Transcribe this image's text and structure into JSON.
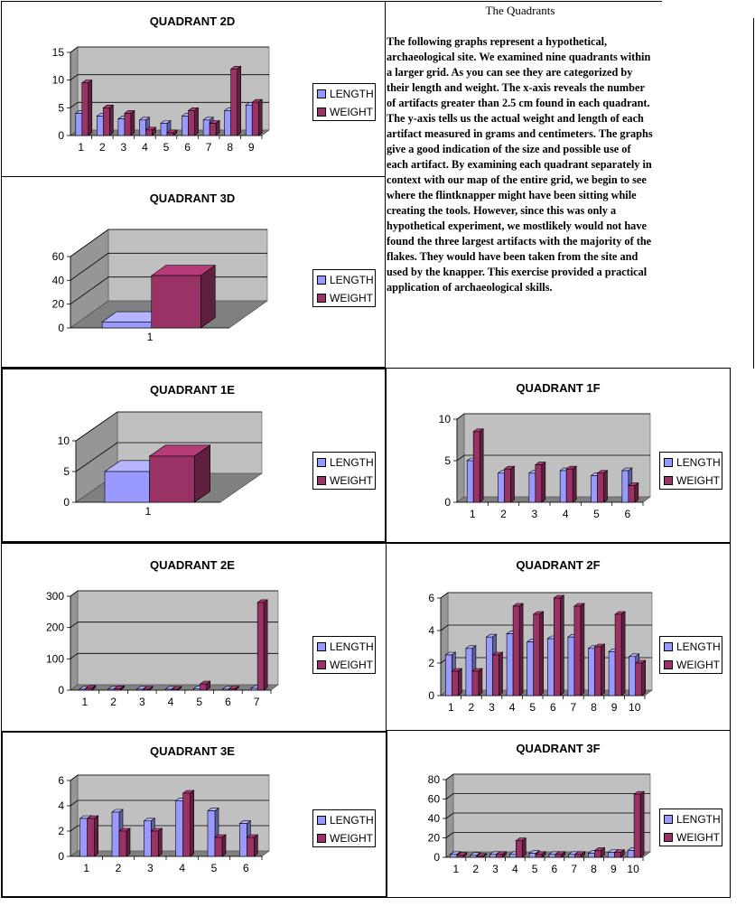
{
  "colors": {
    "length": "#9999ff",
    "weight": "#993366",
    "plot_bg": "#c0c0c0",
    "floor": "#808080"
  },
  "legend": {
    "length_label": "LENGTH",
    "weight_label": "WEIGHT"
  },
  "doc": {
    "title": "The Quadrants",
    "body": "The following  graphs represent a hypothetical, archaeological site.  We examined nine quadrants within a larger grid.  As you can see they are categorized by their length and weight.  The x-axis reveals the number of artifacts greater than 2.5 cm found in each quadrant.  The y-axis tells us the actual weight and length of each artifact measured in grams and centimeters.  The graphs give a good indication of the size and possible use of each artifact.  By examining each quadrant separately in context with our map of the entire grid, we begin to see where the flintknapper might have been sitting while creating the tools.  However, since this was only a hypothetical experiment, we mostlikely would not have found the three largest artifacts with the majority of the flakes.  They would have been taken from the site and used by the knapper.  This exercise provided a practical application of archaeological skills."
  },
  "chart_data": [
    {
      "id": "q2d",
      "type": "bar",
      "title": "QUADRANT 2D",
      "categories": [
        "1",
        "2",
        "3",
        "4",
        "5",
        "6",
        "7",
        "8",
        "9"
      ],
      "yticks": [
        "0",
        "5",
        "10",
        "15"
      ],
      "ylim": [
        0,
        15
      ],
      "legend": "right",
      "series": [
        {
          "name": "LENGTH",
          "values": [
            4,
            3.5,
            3,
            2.8,
            2.2,
            3.5,
            2.8,
            4.5,
            5.5
          ]
        },
        {
          "name": "WEIGHT",
          "values": [
            9.5,
            5,
            4,
            1,
            0.5,
            4.5,
            2.2,
            12,
            6
          ]
        }
      ]
    },
    {
      "id": "q3d",
      "type": "bar",
      "title": "QUADRANT 3D",
      "categories": [
        "1"
      ],
      "yticks": [
        "0",
        "20",
        "40",
        "60"
      ],
      "ylim": [
        0,
        60
      ],
      "legend": "right",
      "series": [
        {
          "name": "LENGTH",
          "values": [
            5
          ]
        },
        {
          "name": "WEIGHT",
          "values": [
            44
          ]
        }
      ]
    },
    {
      "id": "q1e",
      "type": "bar",
      "title": "QUADRANT 1E",
      "categories": [
        "1"
      ],
      "yticks": [
        "0",
        "5",
        "10"
      ],
      "ylim": [
        0,
        10
      ],
      "legend": "right",
      "series": [
        {
          "name": "LENGTH",
          "values": [
            5
          ]
        },
        {
          "name": "WEIGHT",
          "values": [
            7.5
          ]
        }
      ]
    },
    {
      "id": "q1f",
      "type": "bar",
      "title": "QUADRANT 1F",
      "categories": [
        "1",
        "2",
        "3",
        "4",
        "5",
        "6"
      ],
      "yticks": [
        "0",
        "5",
        "10"
      ],
      "ylim": [
        0,
        10
      ],
      "legend": "right",
      "series": [
        {
          "name": "LENGTH",
          "values": [
            5,
            3.5,
            3.5,
            3.8,
            3.2,
            3.8
          ]
        },
        {
          "name": "WEIGHT",
          "values": [
            8.5,
            4,
            4.5,
            4,
            3.5,
            2
          ]
        }
      ]
    },
    {
      "id": "q2e",
      "type": "bar",
      "title": "QUADRANT 2E",
      "categories": [
        "1",
        "2",
        "3",
        "4",
        "5",
        "6",
        "7"
      ],
      "yticks": [
        "0",
        "100",
        "200",
        "300"
      ],
      "ylim": [
        0,
        300
      ],
      "legend": "right",
      "series": [
        {
          "name": "LENGTH",
          "values": [
            3,
            3,
            3,
            3,
            5,
            3,
            6
          ]
        },
        {
          "name": "WEIGHT",
          "values": [
            6,
            5,
            3,
            3,
            20,
            4,
            280
          ]
        }
      ]
    },
    {
      "id": "q2f",
      "type": "bar",
      "title": "QUADRANT 2F",
      "categories": [
        "1",
        "2",
        "3",
        "4",
        "5",
        "6",
        "7",
        "8",
        "9",
        "10"
      ],
      "yticks": [
        "0",
        "2",
        "4",
        "6"
      ],
      "ylim": [
        0,
        6
      ],
      "legend": "right",
      "series": [
        {
          "name": "LENGTH",
          "values": [
            2.5,
            2.9,
            3.6,
            3.8,
            3.3,
            3.5,
            3.6,
            2.9,
            2.7,
            2.4
          ]
        },
        {
          "name": "WEIGHT",
          "values": [
            1.5,
            1.5,
            2.5,
            5.5,
            5,
            6,
            5.5,
            3,
            5,
            2
          ]
        }
      ]
    },
    {
      "id": "q3e",
      "type": "bar",
      "title": "QUADRANT 3E",
      "categories": [
        "1",
        "2",
        "3",
        "4",
        "5",
        "6"
      ],
      "yticks": [
        "0",
        "2",
        "4",
        "6"
      ],
      "ylim": [
        0,
        6
      ],
      "legend": "right",
      "series": [
        {
          "name": "LENGTH",
          "values": [
            3,
            3.5,
            2.8,
            4.4,
            3.6,
            2.6
          ]
        },
        {
          "name": "WEIGHT",
          "values": [
            3,
            2,
            2,
            5,
            1.5,
            1.5
          ]
        }
      ]
    },
    {
      "id": "q3f",
      "type": "bar",
      "title": "QUADRANT 3F",
      "categories": [
        "1",
        "2",
        "3",
        "4",
        "5",
        "6",
        "7",
        "8",
        "9",
        "10"
      ],
      "yticks": [
        "0",
        "20",
        "40",
        "60",
        "80"
      ],
      "ylim": [
        0,
        80
      ],
      "legend": "right",
      "series": [
        {
          "name": "LENGTH",
          "values": [
            3,
            2,
            3,
            3,
            4,
            3,
            3,
            4,
            5,
            7
          ]
        },
        {
          "name": "WEIGHT",
          "values": [
            2,
            1,
            3,
            17,
            3,
            3,
            3,
            7,
            5,
            65
          ]
        }
      ]
    }
  ]
}
